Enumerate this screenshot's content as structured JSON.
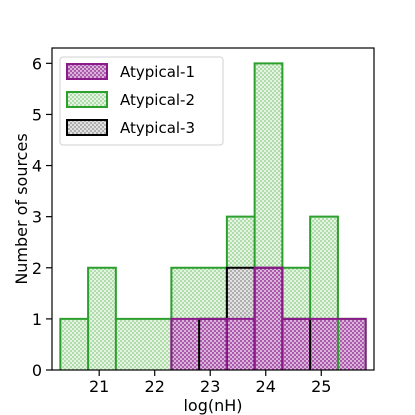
{
  "chart_data": {
    "type": "bar",
    "histogram": true,
    "xlabel": "log(nH)",
    "ylabel": "Number of sources",
    "xlim": [
      20.15,
      25.95
    ],
    "ylim": [
      0,
      6.3
    ],
    "x_ticks": [
      21,
      22,
      23,
      24,
      25
    ],
    "y_ticks": [
      0,
      1,
      2,
      3,
      4,
      5,
      6
    ],
    "legend_position": "top-left",
    "series": [
      {
        "name": "Atypical-2",
        "edge_color": "#2ca02c",
        "fill_color": "#c9e6c5",
        "bins": [
          {
            "x0": 20.3,
            "x1": 20.8,
            "value": 1
          },
          {
            "x0": 20.8,
            "x1": 21.3,
            "value": 2
          },
          {
            "x0": 21.3,
            "x1": 22.3,
            "value": 1
          },
          {
            "x0": 22.3,
            "x1": 23.3,
            "value": 2
          },
          {
            "x0": 23.3,
            "x1": 23.8,
            "value": 3
          },
          {
            "x0": 23.8,
            "x1": 24.3,
            "value": 6
          },
          {
            "x0": 24.3,
            "x1": 24.8,
            "value": 2
          },
          {
            "x0": 24.8,
            "x1": 25.3,
            "value": 3
          },
          {
            "x0": 25.3,
            "x1": 25.8,
            "value": 1
          }
        ]
      },
      {
        "name": "Atypical-3",
        "edge_color": "#000000",
        "fill_color": "#c8c8c8",
        "bins": [
          {
            "x0": 22.8,
            "x1": 23.3,
            "value": 1
          },
          {
            "x0": 23.3,
            "x1": 23.8,
            "value": 2
          },
          {
            "x0": 23.8,
            "x1": 24.3,
            "value": 2
          },
          {
            "x0": 24.3,
            "x1": 24.8,
            "value": 1
          }
        ]
      },
      {
        "name": "Atypical-1",
        "edge_color": "#8b1a8b",
        "fill_color": "#b070b0",
        "bins": [
          {
            "x0": 22.3,
            "x1": 23.3,
            "value": 1
          },
          {
            "x0": 23.3,
            "x1": 23.8,
            "value": 1
          },
          {
            "x0": 23.8,
            "x1": 24.3,
            "value": 2
          },
          {
            "x0": 24.3,
            "x1": 25.8,
            "value": 1
          }
        ]
      }
    ],
    "legend": [
      {
        "name": "Atypical-1",
        "edge_color": "#8b1a8b",
        "fill_color": "#b070b0"
      },
      {
        "name": "Atypical-2",
        "edge_color": "#2ca02c",
        "fill_color": "#c9e6c5"
      },
      {
        "name": "Atypical-3",
        "edge_color": "#000000",
        "fill_color": "#c8c8c8"
      }
    ]
  }
}
